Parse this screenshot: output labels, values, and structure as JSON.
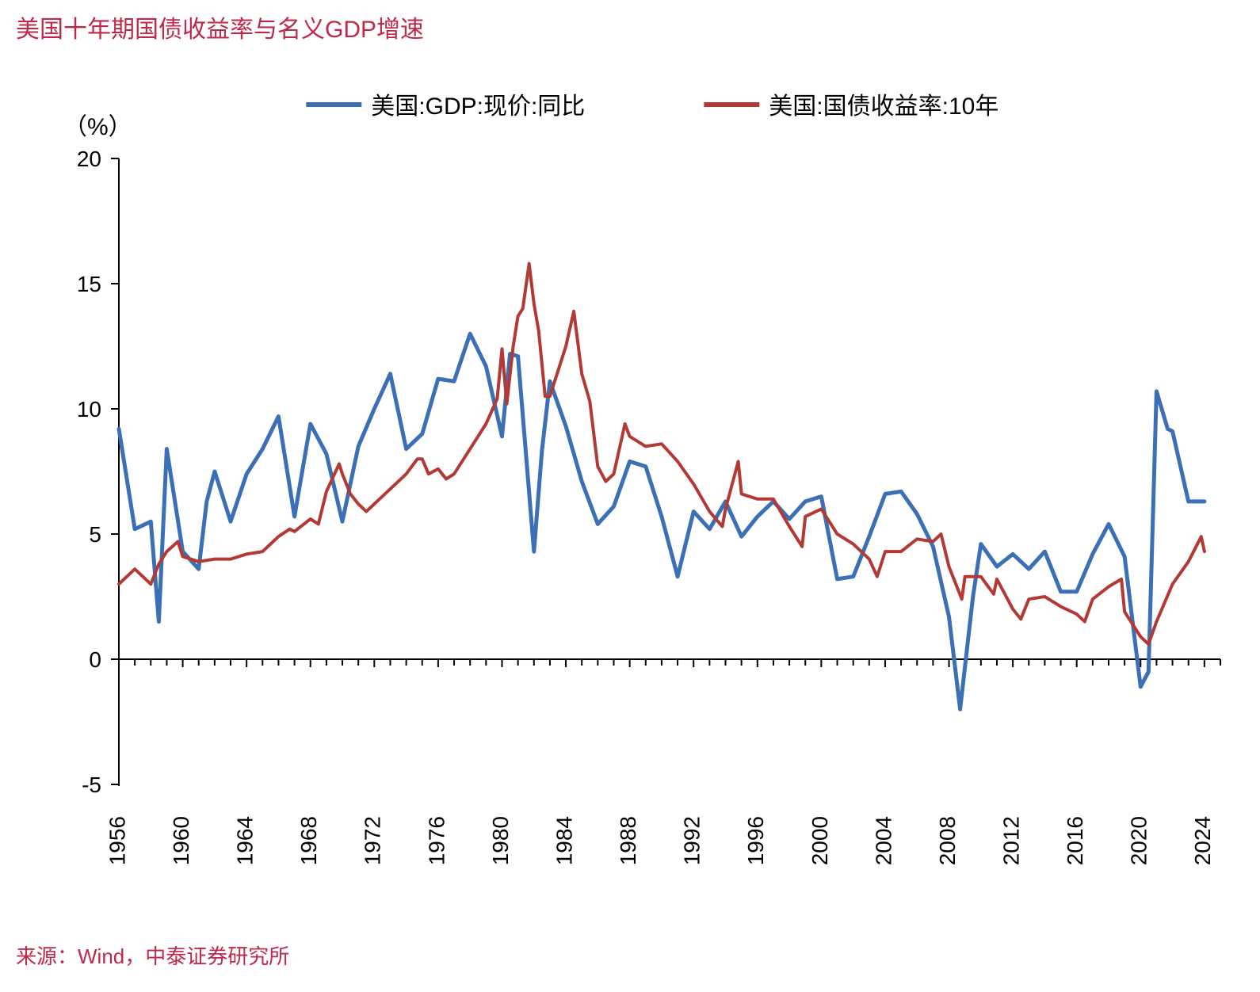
{
  "title": {
    "text": "美国十年期国债收益率与名义GDP增速",
    "color": "#c0284a",
    "fontsize": 30
  },
  "source": {
    "text": "来源：Wind，中泰证券研究所",
    "color": "#c0284a",
    "fontsize": 26
  },
  "chart": {
    "type": "line",
    "background_color": "#ffffff",
    "axis_color": "#000000",
    "axis_width": 2,
    "tick_color": "#000000",
    "tick_length": 10,
    "minor_tick_length": 8,
    "y_unit_label": "（%）",
    "y_unit_fontsize": 30,
    "y_unit_color": "#000000",
    "xlim": [
      1956,
      2025
    ],
    "ylim": [
      -5,
      20
    ],
    "yticks": [
      -5,
      0,
      5,
      10,
      15,
      20
    ],
    "xticks_major": [
      1956,
      1960,
      1964,
      1968,
      1972,
      1976,
      1980,
      1984,
      1988,
      1992,
      1996,
      2000,
      2004,
      2008,
      2012,
      2016,
      2020,
      2024
    ],
    "xtick_label_rotation": 90,
    "xtick_fontsize": 28,
    "ytick_fontsize": 28,
    "legend": {
      "y_offset": 50,
      "items": [
        {
          "label": "美国:GDP:现价:同比",
          "color": "#3b6fb6",
          "swatch_width": 70,
          "swatch_height": 6
        },
        {
          "label": "美国:国债收益率:10年",
          "color": "#b33935",
          "swatch_width": 70,
          "swatch_height": 6
        }
      ],
      "fontsize": 30,
      "text_color": "#000000"
    },
    "series": [
      {
        "name": "美国:GDP:现价:同比",
        "color": "#3b6fb6",
        "line_width": 5,
        "x": [
          1956,
          1957,
          1958,
          1958.5,
          1959,
          1960,
          1961,
          1961.5,
          1962,
          1963,
          1964,
          1965,
          1966,
          1967,
          1968,
          1969,
          1970,
          1971,
          1972,
          1973,
          1974,
          1975,
          1976,
          1977,
          1978,
          1979,
          1980,
          1980.5,
          1981,
          1982,
          1982.5,
          1983,
          1984,
          1985,
          1986,
          1987,
          1988,
          1989,
          1990,
          1991,
          1992,
          1993,
          1994,
          1995,
          1996,
          1997,
          1998,
          1999,
          2000,
          2001,
          2002,
          2003,
          2004,
          2005,
          2006,
          2007,
          2008,
          2008.7,
          2009,
          2009.5,
          2010,
          2011,
          2012,
          2013,
          2014,
          2015,
          2016,
          2017,
          2018,
          2019,
          2020,
          2020.5,
          2021,
          2021.7,
          2022,
          2023,
          2024
        ],
        "y": [
          9.2,
          5.2,
          5.5,
          1.5,
          8.4,
          4.3,
          3.6,
          6.3,
          7.5,
          5.5,
          7.4,
          8.4,
          9.7,
          5.7,
          9.4,
          8.2,
          5.5,
          8.5,
          10.0,
          11.4,
          8.4,
          9.0,
          11.2,
          11.1,
          13.0,
          11.7,
          8.9,
          12.2,
          12.1,
          4.3,
          8.3,
          11.1,
          9.3,
          7.1,
          5.4,
          6.1,
          7.9,
          7.7,
          5.7,
          3.3,
          5.9,
          5.2,
          6.3,
          4.9,
          5.7,
          6.3,
          5.6,
          6.3,
          6.5,
          3.2,
          3.3,
          4.9,
          6.6,
          6.7,
          5.8,
          4.5,
          1.7,
          -2.0,
          -0.3,
          2.5,
          4.6,
          3.7,
          4.2,
          3.6,
          4.3,
          2.7,
          2.7,
          4.2,
          5.4,
          4.1,
          -1.1,
          -0.5,
          10.7,
          9.2,
          9.1,
          6.3,
          6.3
        ]
      },
      {
        "name": "美国:国债收益率:10年",
        "color": "#b33935",
        "line_width": 4,
        "x": [
          1956,
          1957,
          1957.5,
          1958,
          1958.5,
          1959,
          1959.7,
          1960,
          1961,
          1962,
          1963,
          1964,
          1965,
          1966,
          1966.7,
          1967,
          1968,
          1968.5,
          1969,
          1969.8,
          1970,
          1970.5,
          1971,
          1971.5,
          1972,
          1973,
          1974,
          1974.7,
          1975,
          1975.4,
          1976,
          1976.5,
          1977,
          1978,
          1979,
          1979.7,
          1980,
          1980.3,
          1980.7,
          1981,
          1981.3,
          1981.7,
          1982,
          1982.3,
          1982.7,
          1983,
          1983.5,
          1984,
          1984.5,
          1985,
          1985.5,
          1986,
          1986.5,
          1987,
          1987.7,
          1988,
          1989,
          1990,
          1991,
          1992,
          1993,
          1993.8,
          1994,
          1994.8,
          1995,
          1996,
          1997,
          1998,
          1998.8,
          1999,
          2000,
          2001,
          2002,
          2003,
          2003.5,
          2004,
          2005,
          2006,
          2007,
          2007.5,
          2008,
          2008.8,
          2009,
          2010,
          2010.8,
          2011,
          2012,
          2012.5,
          2013,
          2014,
          2015,
          2016,
          2016.5,
          2017,
          2018,
          2018.8,
          2019,
          2020,
          2020.5,
          2021,
          2022,
          2023,
          2023.8,
          2024
        ],
        "y": [
          3.0,
          3.6,
          3.3,
          3.0,
          3.8,
          4.3,
          4.7,
          4.1,
          3.9,
          4.0,
          4.0,
          4.2,
          4.3,
          4.9,
          5.2,
          5.1,
          5.6,
          5.4,
          6.7,
          7.8,
          7.4,
          6.6,
          6.2,
          5.9,
          6.2,
          6.8,
          7.4,
          8.0,
          8.0,
          7.4,
          7.6,
          7.2,
          7.4,
          8.4,
          9.4,
          10.4,
          12.4,
          10.2,
          12.5,
          13.7,
          14.0,
          15.8,
          14.2,
          13.1,
          10.5,
          10.5,
          11.5,
          12.5,
          13.9,
          11.4,
          10.3,
          7.7,
          7.1,
          7.4,
          9.4,
          8.9,
          8.5,
          8.6,
          7.9,
          7.0,
          5.9,
          5.3,
          6.0,
          7.9,
          6.6,
          6.4,
          6.4,
          5.3,
          4.5,
          5.7,
          6.0,
          5.0,
          4.6,
          4.0,
          3.3,
          4.3,
          4.3,
          4.8,
          4.7,
          5.0,
          3.7,
          2.4,
          3.3,
          3.3,
          2.6,
          3.2,
          2.0,
          1.6,
          2.4,
          2.5,
          2.1,
          1.8,
          1.5,
          2.4,
          2.9,
          3.2,
          1.9,
          0.9,
          0.6,
          1.5,
          3.0,
          3.9,
          4.9,
          4.3
        ]
      }
    ]
  }
}
